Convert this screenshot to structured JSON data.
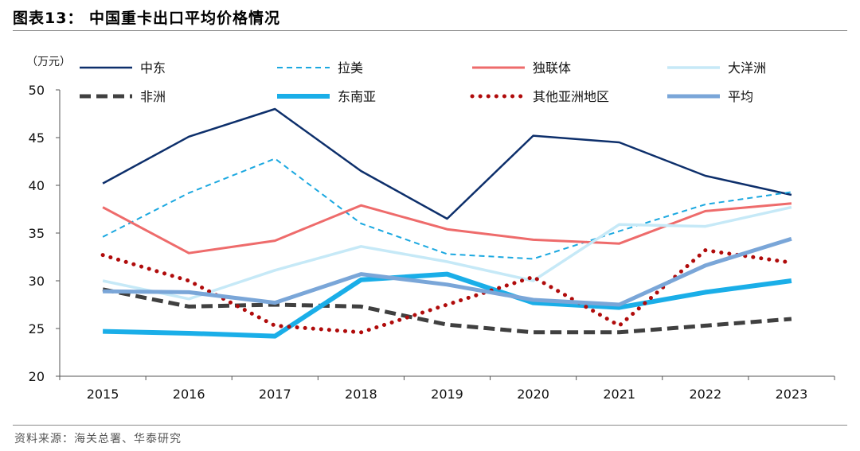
{
  "figure": {
    "title": "图表13：  中国重卡出口平均价格情况",
    "source": "资料来源：海关总署、华泰研究"
  },
  "chart_data": {
    "type": "line",
    "unit_label": "（万元）",
    "x": [
      "2015",
      "2016",
      "2017",
      "2018",
      "2019",
      "2020",
      "2021",
      "2022",
      "2023"
    ],
    "ylim": [
      20,
      50
    ],
    "yticks": [
      20,
      25,
      30,
      35,
      40,
      45,
      50
    ],
    "grid": false,
    "legend_position": "top",
    "series": [
      {
        "name": "中东",
        "color": "#0d2f6b",
        "style": "solid",
        "width": 2.5,
        "values": [
          40.2,
          45.1,
          48.0,
          41.5,
          36.5,
          45.2,
          44.5,
          41.0,
          39.0
        ]
      },
      {
        "name": "拉美",
        "color": "#1ba8e0",
        "style": "dashed",
        "width": 2,
        "values": [
          34.6,
          39.2,
          42.8,
          36.0,
          32.8,
          32.3,
          35.2,
          38.0,
          39.3
        ]
      },
      {
        "name": "独联体",
        "color": "#ee6b6b",
        "style": "solid",
        "width": 3,
        "values": [
          37.7,
          32.9,
          34.2,
          37.9,
          35.4,
          34.3,
          33.9,
          37.3,
          38.1
        ]
      },
      {
        "name": "大洋洲",
        "color": "#c6e9f7",
        "style": "solid",
        "width": 3.5,
        "values": [
          30.0,
          28.1,
          31.1,
          33.6,
          32.0,
          30.0,
          35.9,
          35.7,
          37.7
        ]
      },
      {
        "name": "非洲",
        "color": "#404040",
        "style": "bold-dashed",
        "width": 5,
        "values": [
          29.1,
          27.3,
          27.5,
          27.3,
          25.4,
          24.6,
          24.6,
          25.3,
          26.0
        ]
      },
      {
        "name": "东南亚",
        "color": "#1aaee8",
        "style": "solid",
        "width": 6,
        "values": [
          24.7,
          24.5,
          24.2,
          30.1,
          30.7,
          27.7,
          27.2,
          28.8,
          30.0
        ]
      },
      {
        "name": "其他亚洲地区",
        "color": "#b00b0b",
        "style": "dotted",
        "width": 5,
        "values": [
          32.7,
          30.0,
          25.3,
          24.6,
          27.5,
          30.4,
          25.3,
          33.2,
          31.9
        ]
      },
      {
        "name": "平均",
        "color": "#7aa6d8",
        "style": "solid",
        "width": 5,
        "values": [
          28.9,
          28.8,
          27.7,
          30.7,
          29.6,
          28.0,
          27.5,
          31.6,
          34.4
        ]
      }
    ]
  }
}
